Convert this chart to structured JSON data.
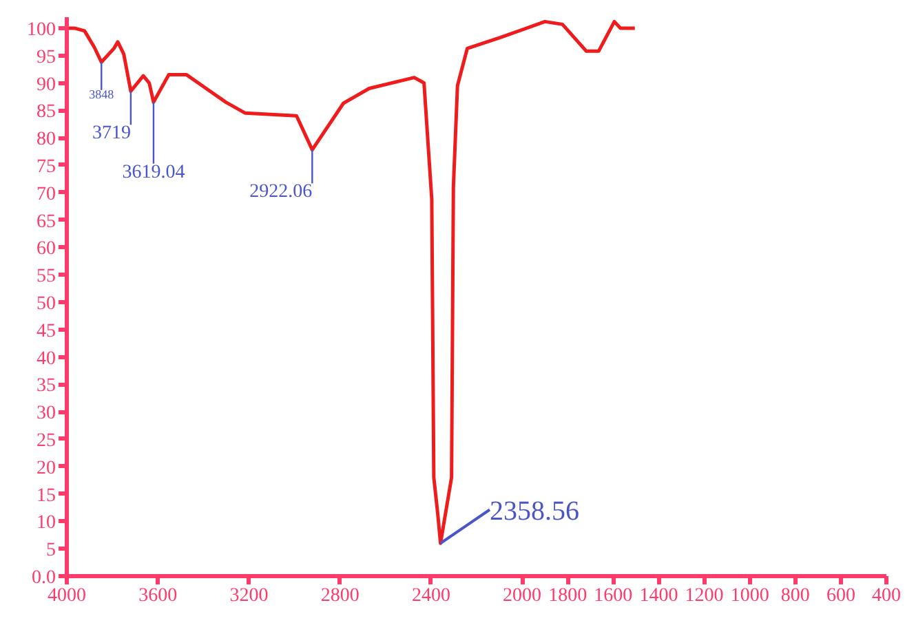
{
  "chart_data": {
    "type": "line",
    "x": [
      4000,
      3966,
      3922,
      3879,
      3848,
      3793,
      3776,
      3750,
      3719,
      3664,
      3638,
      3619.04,
      3552,
      3474,
      3388,
      3302,
      3216,
      2991,
      2922.06,
      2785,
      2672,
      2474,
      2431,
      2397,
      2388,
      2371,
      2358.56,
      2310,
      2302,
      2284,
      2241,
      2095,
      1900,
      1823,
      1718,
      1664,
      1595,
      1568,
      1505
    ],
    "series": [
      {
        "color": "#ee1c1c",
        "values": [
          100,
          100,
          99.5,
          96.5,
          93.8,
          96.3,
          97.5,
          95.3,
          88.5,
          91.3,
          90,
          86.5,
          91.5,
          91.5,
          89,
          86.5,
          84.5,
          84,
          77.8,
          86.3,
          89,
          91,
          90,
          68.8,
          18,
          11.5,
          6,
          18,
          71,
          89.5,
          96.3,
          98.3,
          101.2,
          100.7,
          95.8,
          95.8,
          101.2,
          100,
          100
        ]
      }
    ],
    "xlim": [
      4000,
      400
    ],
    "xticks": [
      4000,
      3600,
      3200,
      2800,
      2400,
      2000,
      1800,
      1600,
      1400,
      1200,
      1000,
      800,
      600,
      400
    ],
    "ylim": [
      0,
      102
    ],
    "yticks": [
      {
        "value": 0,
        "label": "0.0"
      },
      5,
      10,
      15,
      20,
      25,
      30,
      35,
      40,
      45,
      50,
      55,
      60,
      65,
      70,
      75,
      80,
      85,
      90,
      95,
      100
    ],
    "annotations": [
      {
        "text": "3848",
        "x": 3848,
        "y": 93.8
      },
      {
        "text": "3719",
        "x": 3719,
        "y": 88.5
      },
      {
        "text": "3619.04",
        "x": 3619.04,
        "y": 86.5
      },
      {
        "text": "2922.06",
        "x": 2922.06,
        "y": 77.8
      },
      {
        "text": "2358.56",
        "x": 2358.56,
        "y": 6
      }
    ],
    "grid": false
  }
}
